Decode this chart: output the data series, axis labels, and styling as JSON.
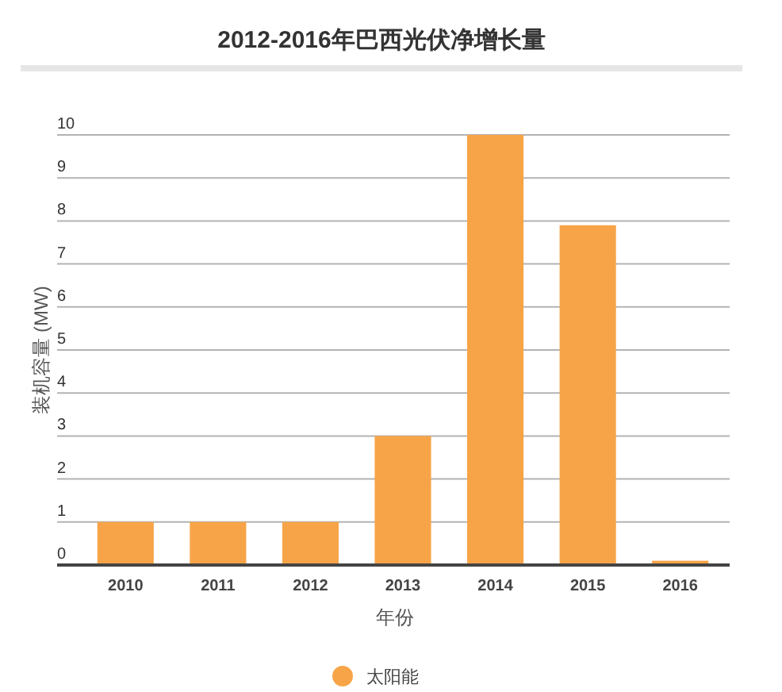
{
  "chart_data": {
    "type": "bar",
    "title": "2012-2016年巴西光伏净增长量",
    "xlabel": "年份",
    "ylabel": "装机容量 (MW)",
    "categories": [
      "2010",
      "2011",
      "2012",
      "2013",
      "2014",
      "2015",
      "2016"
    ],
    "series": [
      {
        "name": "太阳能",
        "color": "#f7a448",
        "values": [
          1,
          1,
          1,
          3,
          10,
          7.9,
          0.1
        ]
      }
    ],
    "ylim": [
      0,
      10
    ],
    "yticks": [
      0,
      1,
      2,
      3,
      4,
      5,
      6,
      7,
      8,
      9,
      10
    ],
    "grid": "y",
    "legend": "bottom"
  }
}
